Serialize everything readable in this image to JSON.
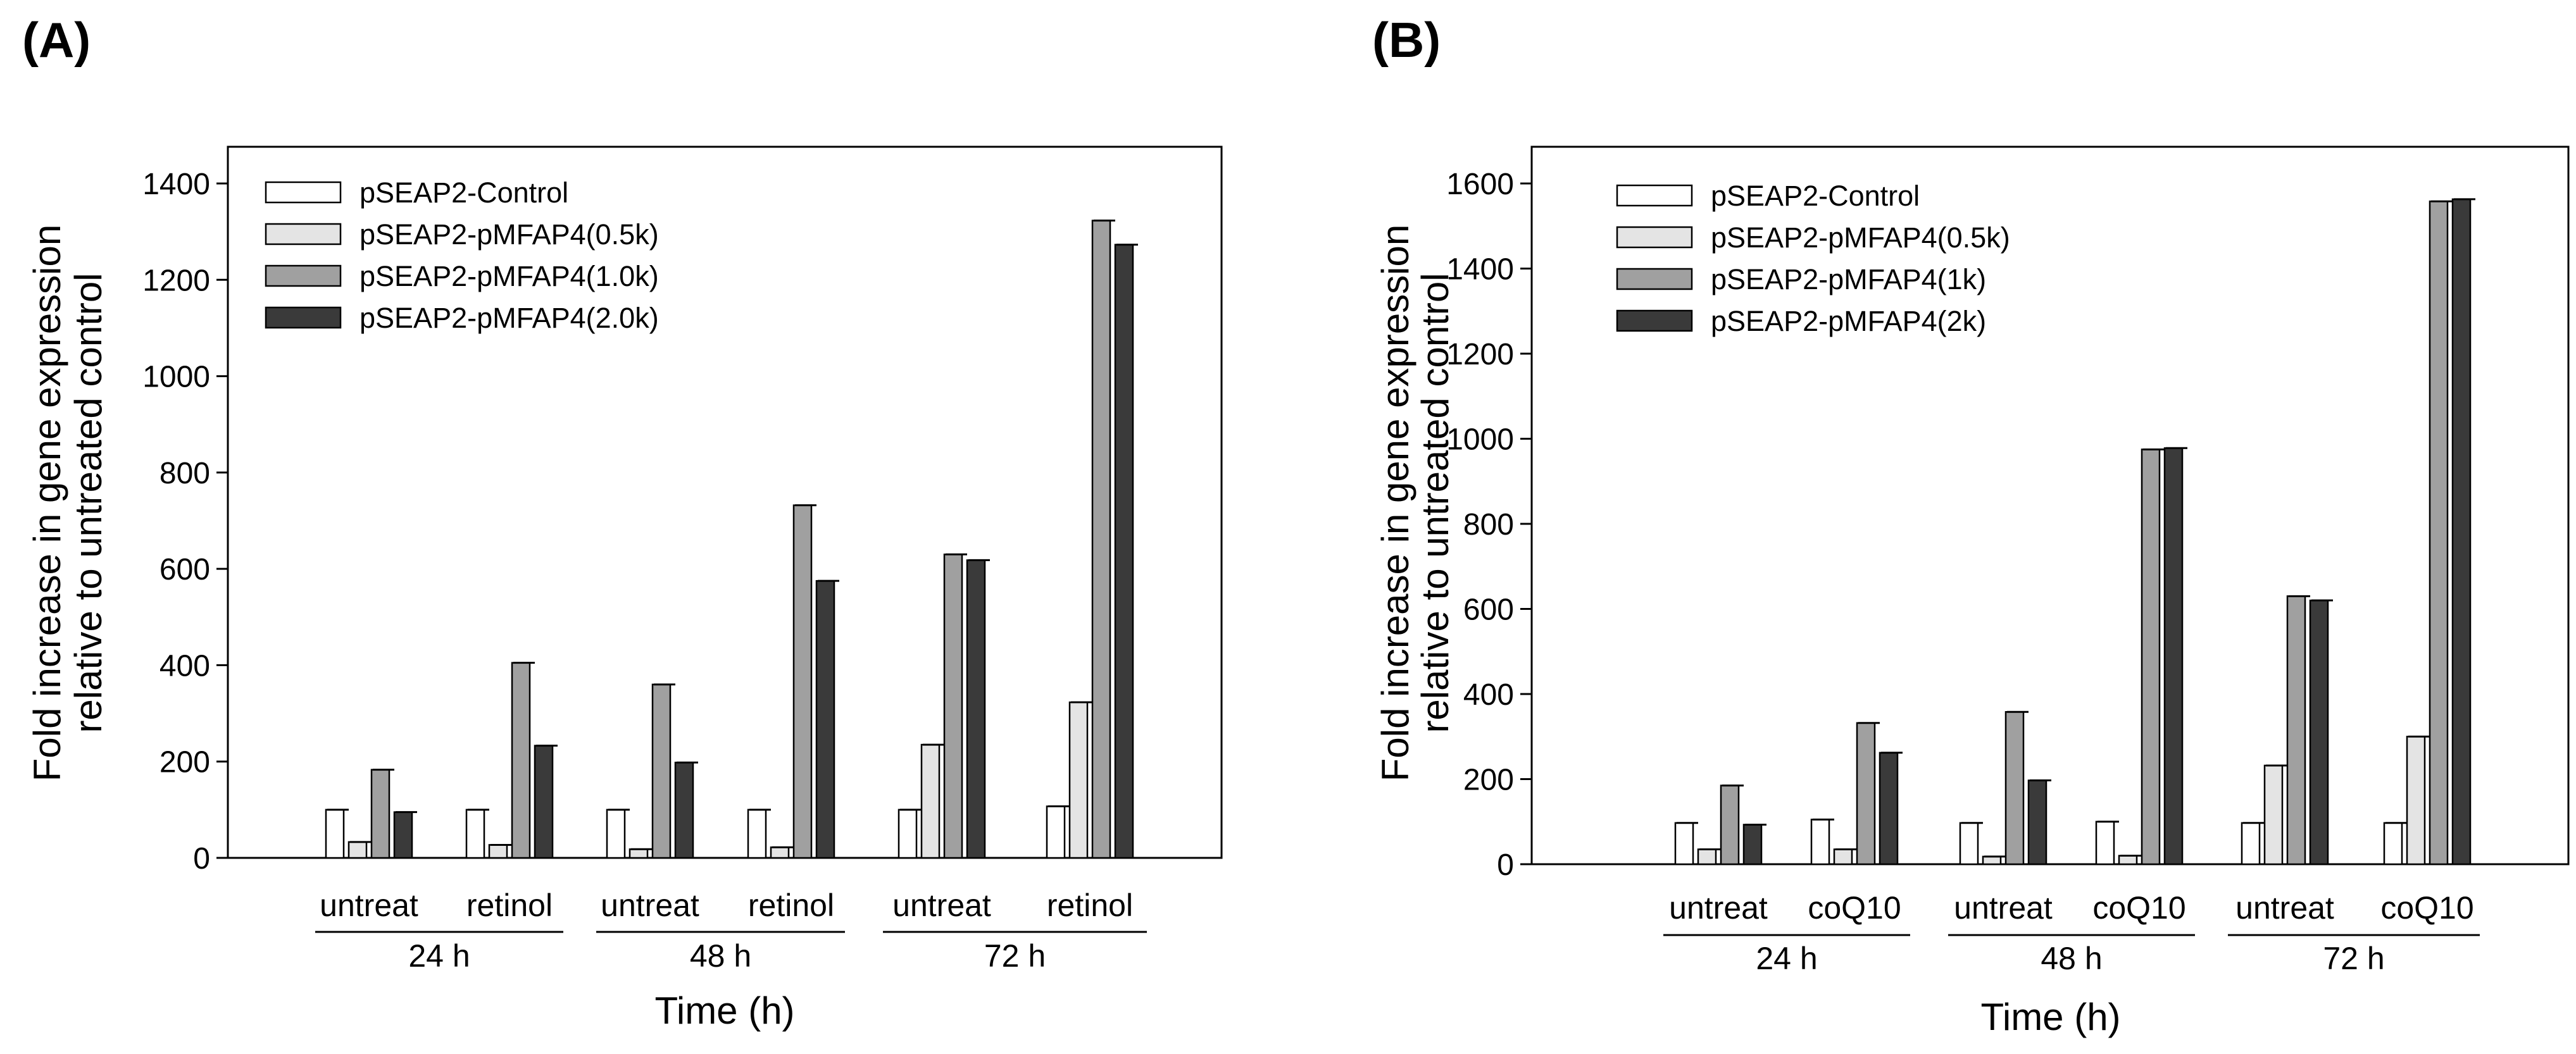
{
  "colors": {
    "series": [
      "#ffffff",
      "#e4e4e4",
      "#a0a0a0",
      "#3a3a3a"
    ],
    "stroke": "#000000"
  },
  "chart_data": [
    {
      "panel_label": "(A)",
      "type": "bar",
      "xlabel": "Time (h)",
      "ylabel_line1": "Fold increase in gene expression",
      "ylabel_line2": "relative to untreated control",
      "ylim": [
        0,
        1400
      ],
      "yticks": [
        "0",
        "200",
        "400",
        "600",
        "800",
        "1000",
        "1200",
        "1400"
      ],
      "categories": [
        "untreat",
        "retinol",
        "untreat",
        "retinol",
        "untreat",
        "retinol"
      ],
      "groups": [
        "24 h",
        "48 h",
        "72 h"
      ],
      "legend_position": "top-left",
      "series": [
        {
          "name": "pSEAP2-Control",
          "values": [
            100,
            100,
            100,
            100,
            100,
            107
          ]
        },
        {
          "name": "pSEAP2-pMFAP4(0.5k)",
          "values": [
            33,
            27,
            18,
            22,
            235,
            323
          ]
        },
        {
          "name": "pSEAP2-pMFAP4(1.0k)",
          "values": [
            183,
            405,
            360,
            732,
            630,
            1323
          ]
        },
        {
          "name": "pSEAP2-pMFAP4(2.0k)",
          "values": [
            95,
            233,
            198,
            575,
            618,
            1273
          ]
        }
      ]
    },
    {
      "panel_label": "(B)",
      "type": "bar",
      "xlabel": "Time (h)",
      "ylabel_line1": "Fold increase in gene expression",
      "ylabel_line2": "relative to untreated control",
      "ylim": [
        0,
        1600
      ],
      "yticks": [
        "0",
        "200",
        "400",
        "600",
        "800",
        "1000",
        "1200",
        "1400",
        "1600"
      ],
      "categories": [
        "untreat",
        "coQ10",
        "untreat",
        "coQ10",
        "untreat",
        "coQ10"
      ],
      "groups": [
        "24 h",
        "48 h",
        "72 h"
      ],
      "legend_position": "top-left",
      "series": [
        {
          "name": "pSEAP2-Control",
          "values": [
            97,
            105,
            97,
            100,
            97,
            97
          ]
        },
        {
          "name": "pSEAP2-pMFAP4(0.5k)",
          "values": [
            35,
            35,
            18,
            20,
            232,
            300
          ]
        },
        {
          "name": "pSEAP2-pMFAP4(1k)",
          "values": [
            185,
            332,
            358,
            975,
            630,
            1558
          ]
        },
        {
          "name": "pSEAP2-pMFAP4(2k)",
          "values": [
            93,
            262,
            197,
            978,
            620,
            1563
          ]
        }
      ]
    }
  ]
}
